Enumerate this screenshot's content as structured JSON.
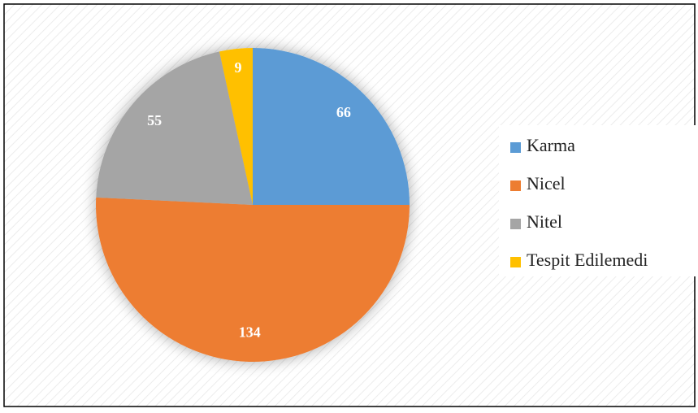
{
  "chart_data": {
    "type": "pie",
    "categories": [
      "Karma",
      "Nicel",
      "Nitel",
      "Tespit Edilemedi"
    ],
    "values": [
      66,
      134,
      55,
      9
    ],
    "colors": [
      "#5b9bd5",
      "#ed7d31",
      "#a5a5a5",
      "#ffc000"
    ],
    "legend": "right"
  }
}
